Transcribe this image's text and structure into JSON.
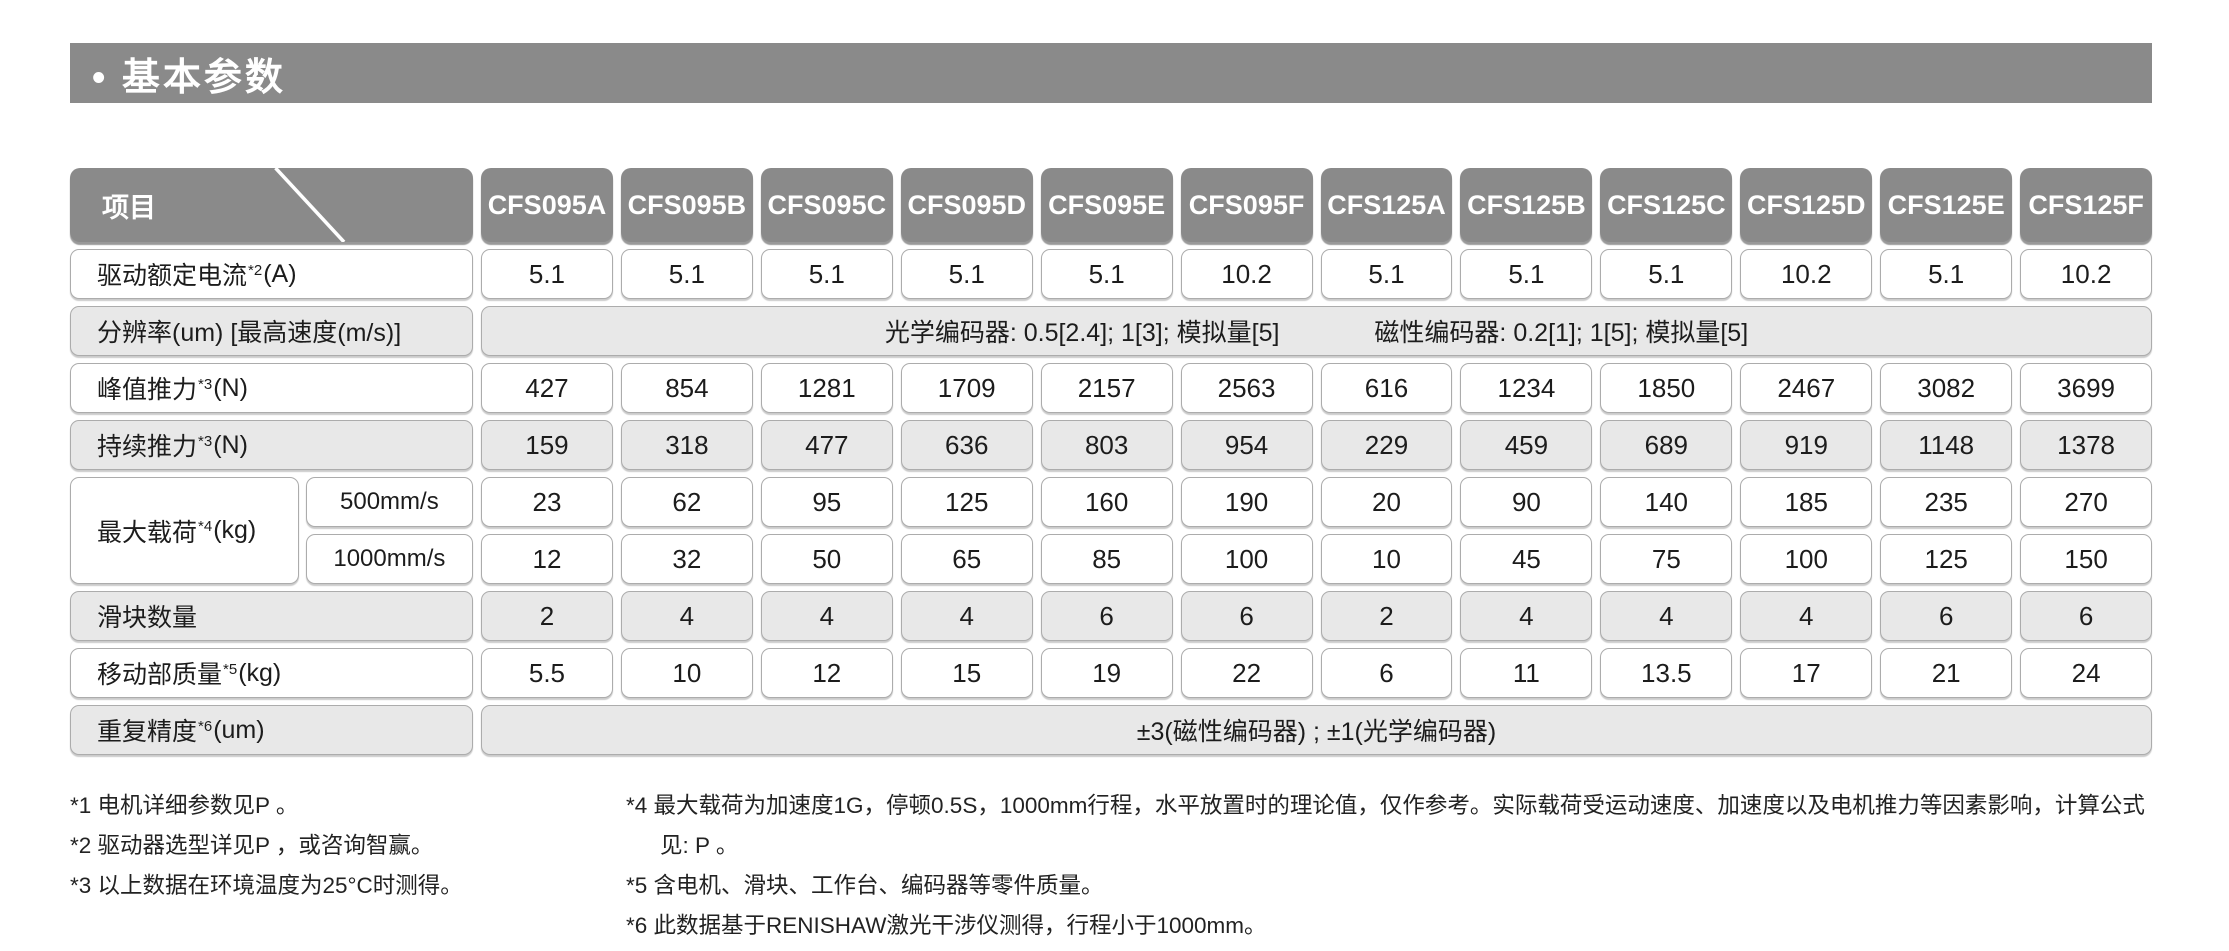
{
  "colors": {
    "header_gray": "#8A8A8A",
    "row_gray": "#E8E8E8",
    "row_white": "#FFFFFF",
    "cell_border": "#ACACAC",
    "text": "#1C1C1C",
    "title_text": "#FFFFFF"
  },
  "section": {
    "title": "• 基本参数"
  },
  "table": {
    "corner_label": "项目",
    "columns": [
      "CFS095A",
      "CFS095B",
      "CFS095C",
      "CFS095D",
      "CFS095E",
      "CFS095F",
      "CFS125A",
      "CFS125B",
      "CFS125C",
      "CFS125D",
      "CFS125E",
      "CFS125F"
    ],
    "rows": [
      {
        "type": "values",
        "shade": "white",
        "label": "驱动额定电流",
        "sup": "*2",
        "unit": "(A)",
        "values": [
          "5.1",
          "5.1",
          "5.1",
          "5.1",
          "5.1",
          "10.2",
          "5.1",
          "5.1",
          "5.1",
          "10.2",
          "5.1",
          "10.2"
        ]
      },
      {
        "type": "merged",
        "shade": "gray",
        "label": "分辨率(um) [最高速度(m/s)]",
        "sup": "",
        "unit": "",
        "parts": [
          "光学编码器: 0.5[2.4];  1[3];  模拟量[5]",
          "磁性编码器: 0.2[1];  1[5];  模拟量[5]"
        ]
      },
      {
        "type": "values",
        "shade": "white",
        "label": "峰值推力",
        "sup": "*3",
        "unit": "(N)",
        "values": [
          "427",
          "854",
          "1281",
          "1709",
          "2157",
          "2563",
          "616",
          "1234",
          "1850",
          "2467",
          "3082",
          "3699"
        ]
      },
      {
        "type": "values",
        "shade": "gray",
        "label": "持续推力",
        "sup": "*3",
        "unit": "(N)",
        "values": [
          "159",
          "318",
          "477",
          "636",
          "803",
          "954",
          "229",
          "459",
          "689",
          "919",
          "1148",
          "1378"
        ]
      },
      {
        "type": "dual",
        "shade": "white",
        "label": "最大载荷",
        "sup": "*4",
        "unit": "(kg)",
        "subrows": [
          {
            "sublabel": "500mm/s",
            "values": [
              "23",
              "62",
              "95",
              "125",
              "160",
              "190",
              "20",
              "90",
              "140",
              "185",
              "235",
              "270"
            ]
          },
          {
            "sublabel": "1000mm/s",
            "values": [
              "12",
              "32",
              "50",
              "65",
              "85",
              "100",
              "10",
              "45",
              "75",
              "100",
              "125",
              "150"
            ]
          }
        ]
      },
      {
        "type": "values",
        "shade": "gray",
        "label": "滑块数量",
        "sup": "",
        "unit": "",
        "values": [
          "2",
          "4",
          "4",
          "4",
          "6",
          "6",
          "2",
          "4",
          "4",
          "4",
          "6",
          "6"
        ]
      },
      {
        "type": "values",
        "shade": "white",
        "label": "移动部质量",
        "sup": "*5",
        "unit": "(kg)",
        "values": [
          "5.5",
          "10",
          "12",
          "15",
          "19",
          "22",
          "6",
          "11",
          "13.5",
          "17",
          "21",
          "24"
        ]
      },
      {
        "type": "merged",
        "shade": "gray",
        "label": "重复精度",
        "sup": "*6",
        "unit": "(um)",
        "parts": [
          "±3(磁性编码器) ;   ±1(光学编码器)"
        ]
      }
    ]
  },
  "footnotes": {
    "left": [
      "*1 电机详细参数见P 。",
      "*2 驱动器选型详见P ，或咨询智赢。",
      "*3 以上数据在环境温度为25°C时测得。"
    ],
    "right": [
      "*4 最大载荷为加速度1G，停顿0.5S，1000mm行程，水平放置时的理论值，仅作参考。实际载荷受运动速度、加速度以及电机推力等因素影响，计算公式见: P 。",
      "*5 含电机、滑块、工作台、编码器等零件质量。",
      "*6 此数据基于RENISHAW激光干涉仪测得，行程小于1000mm。"
    ]
  }
}
